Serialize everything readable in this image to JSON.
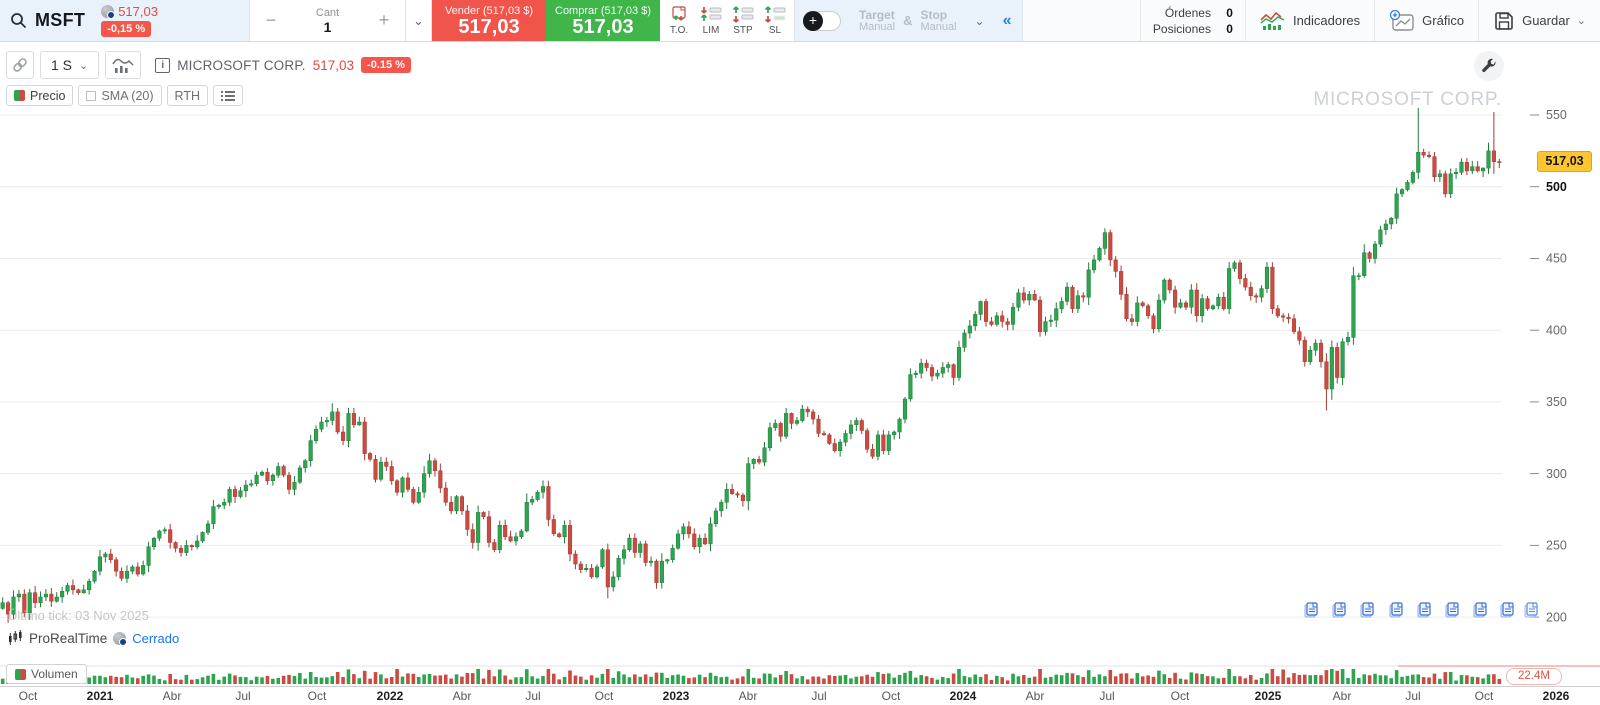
{
  "icons": {
    "chevron_down": "⌄",
    "collapse": "«",
    "minus": "−",
    "plus": "+",
    "info": "i"
  },
  "header": {
    "symbol": "MSFT",
    "price": "517,03",
    "change": "-0,15 %",
    "qty_label": "Cant",
    "qty_value": "1",
    "sell_top": "Vender (517,03 $)",
    "sell_price": "517,03",
    "buy_top": "Comprar (517,03 $)",
    "buy_price": "517,03",
    "order_types": [
      "T.O.",
      "LIM",
      "STP",
      "SL"
    ],
    "target": "Target",
    "stop": "Stop",
    "manual": "Manual",
    "amp": "&",
    "orders_label": "Órdenes",
    "orders_value": "0",
    "positions_label": "Posiciones",
    "positions_value": "0",
    "indicators_label": "Indicadores",
    "chart_label": "Gráfico",
    "save_label": "Guardar"
  },
  "toolbar": {
    "timeframe": "1 S",
    "instrument": "MICROSOFT CORP.",
    "instrument_price": "517,03",
    "instrument_change": "-0.15 %",
    "price_label": "Precio",
    "sma_label": "SMA (20)",
    "rth_label": "RTH"
  },
  "chart": {
    "watermark": "MICROSOFT CORP.",
    "last_price_tag": "517,03",
    "last_tick_text": "Último tick: 03 Nov 2025",
    "provider": "ProRealTime",
    "status": "Cerrado",
    "volume_label": "Volumen",
    "volume_last": "22.4M"
  },
  "chart_data": {
    "type": "candlestick",
    "title": "MICROSOFT CORP.",
    "timeframe": "1 S",
    "ylim": [
      190,
      565
    ],
    "y_ticks": [
      550,
      500,
      450,
      400,
      350,
      300,
      250,
      200
    ],
    "x_ticks": [
      [
        "Oct",
        28
      ],
      [
        "2021",
        100
      ],
      [
        "Abr",
        172
      ],
      [
        "Jul",
        243
      ],
      [
        "Oct",
        317
      ],
      [
        "2022",
        390
      ],
      [
        "Abr",
        462
      ],
      [
        "Jul",
        533
      ],
      [
        "Oct",
        604
      ],
      [
        "2023",
        676
      ],
      [
        "Abr",
        748
      ],
      [
        "Jul",
        819
      ],
      [
        "Oct",
        891
      ],
      [
        "2024",
        963
      ],
      [
        "Abr",
        1035
      ],
      [
        "Jul",
        1107
      ],
      [
        "Oct",
        1180
      ],
      [
        "2025",
        1268
      ],
      [
        "Abr",
        1342
      ],
      [
        "Jul",
        1413
      ],
      [
        "Oct",
        1484
      ],
      [
        "2026",
        1556
      ]
    ],
    "first_open": 206,
    "closes": [
      210,
      202,
      214,
      216,
      203,
      217,
      210,
      214,
      216,
      211,
      214,
      218,
      222,
      219,
      217,
      219,
      225,
      232,
      242,
      244,
      240,
      232,
      227,
      232,
      235,
      230,
      236,
      249,
      255,
      260,
      261,
      252,
      248,
      245,
      250,
      249,
      253,
      259,
      265,
      277,
      278,
      280,
      289,
      284,
      288,
      292,
      293,
      299,
      301,
      295,
      299,
      305,
      299,
      289,
      294,
      304,
      309,
      323,
      331,
      336,
      337,
      343,
      329,
      323,
      342,
      334,
      336,
      314,
      310,
      296,
      308,
      305,
      295,
      287,
      297,
      289,
      280,
      287,
      300,
      309,
      302,
      290,
      280,
      274,
      284,
      274,
      261,
      252,
      273,
      270,
      252,
      247,
      264,
      256,
      253,
      256,
      260,
      280,
      282,
      287,
      291,
      268,
      258,
      256,
      264,
      244,
      237,
      233,
      234,
      228,
      235,
      247,
      221,
      228,
      241,
      247,
      255,
      245,
      251,
      238,
      239,
      224,
      239,
      240,
      248,
      258,
      263,
      258,
      249,
      255,
      251,
      265,
      274,
      280,
      289,
      286,
      285,
      281,
      307,
      310,
      308,
      318,
      332,
      335,
      326,
      342,
      335,
      337,
      345,
      343,
      338,
      328,
      327,
      321,
      316,
      322,
      328,
      334,
      337,
      330,
      317,
      312,
      327,
      316,
      327,
      329,
      338,
      352,
      369,
      370,
      377,
      374,
      368,
      370,
      374,
      376,
      367,
      388,
      398,
      403,
      411,
      420,
      406,
      404,
      410,
      406,
      404,
      416,
      426,
      421,
      425,
      421,
      399,
      406,
      407,
      415,
      420,
      430,
      415,
      424,
      423,
      442,
      449,
      457,
      468,
      449,
      441,
      425,
      408,
      406,
      419,
      417,
      410,
      401,
      421,
      435,
      428,
      416,
      419,
      416,
      428,
      410,
      422,
      415,
      417,
      423,
      415,
      443,
      447,
      436,
      430,
      424,
      423,
      429,
      444,
      415,
      410,
      409,
      408,
      399,
      393,
      378,
      386,
      391,
      378,
      359,
      388,
      367,
      392,
      395,
      438,
      438,
      454,
      450,
      460,
      470,
      474,
      478,
      495,
      498,
      503,
      510,
      524,
      522,
      521,
      507,
      509,
      495,
      509,
      510,
      517,
      511,
      514,
      511,
      513,
      525,
      517.5,
      517.03
    ],
    "wick_overrides": {
      "1": {
        "low": 196
      },
      "61": {
        "high": 349
      },
      "112": {
        "low": 213
      },
      "204": {
        "high": 471
      },
      "245": {
        "low": 344
      },
      "262": {
        "high": 555
      },
      "276": {
        "high": 552,
        "low": 509
      },
      "277": {
        "high": 519.5,
        "low": 513,
        "close": 517.03
      }
    },
    "volume_spikes": {
      "73": 15,
      "237": 14.5,
      "268": 12
    },
    "news_marker_xs": [
      1313,
      1341,
      1369,
      1398,
      1426,
      1454,
      1482,
      1509,
      1533
    ],
    "colors": {
      "up": "#2da44e",
      "up_stroke": "#1f7a3c",
      "down": "#cb4b42",
      "down_stroke": "#a33a32",
      "grid": "#ececec",
      "axis_text": "#66696d",
      "axis_bold": "#141414"
    }
  }
}
